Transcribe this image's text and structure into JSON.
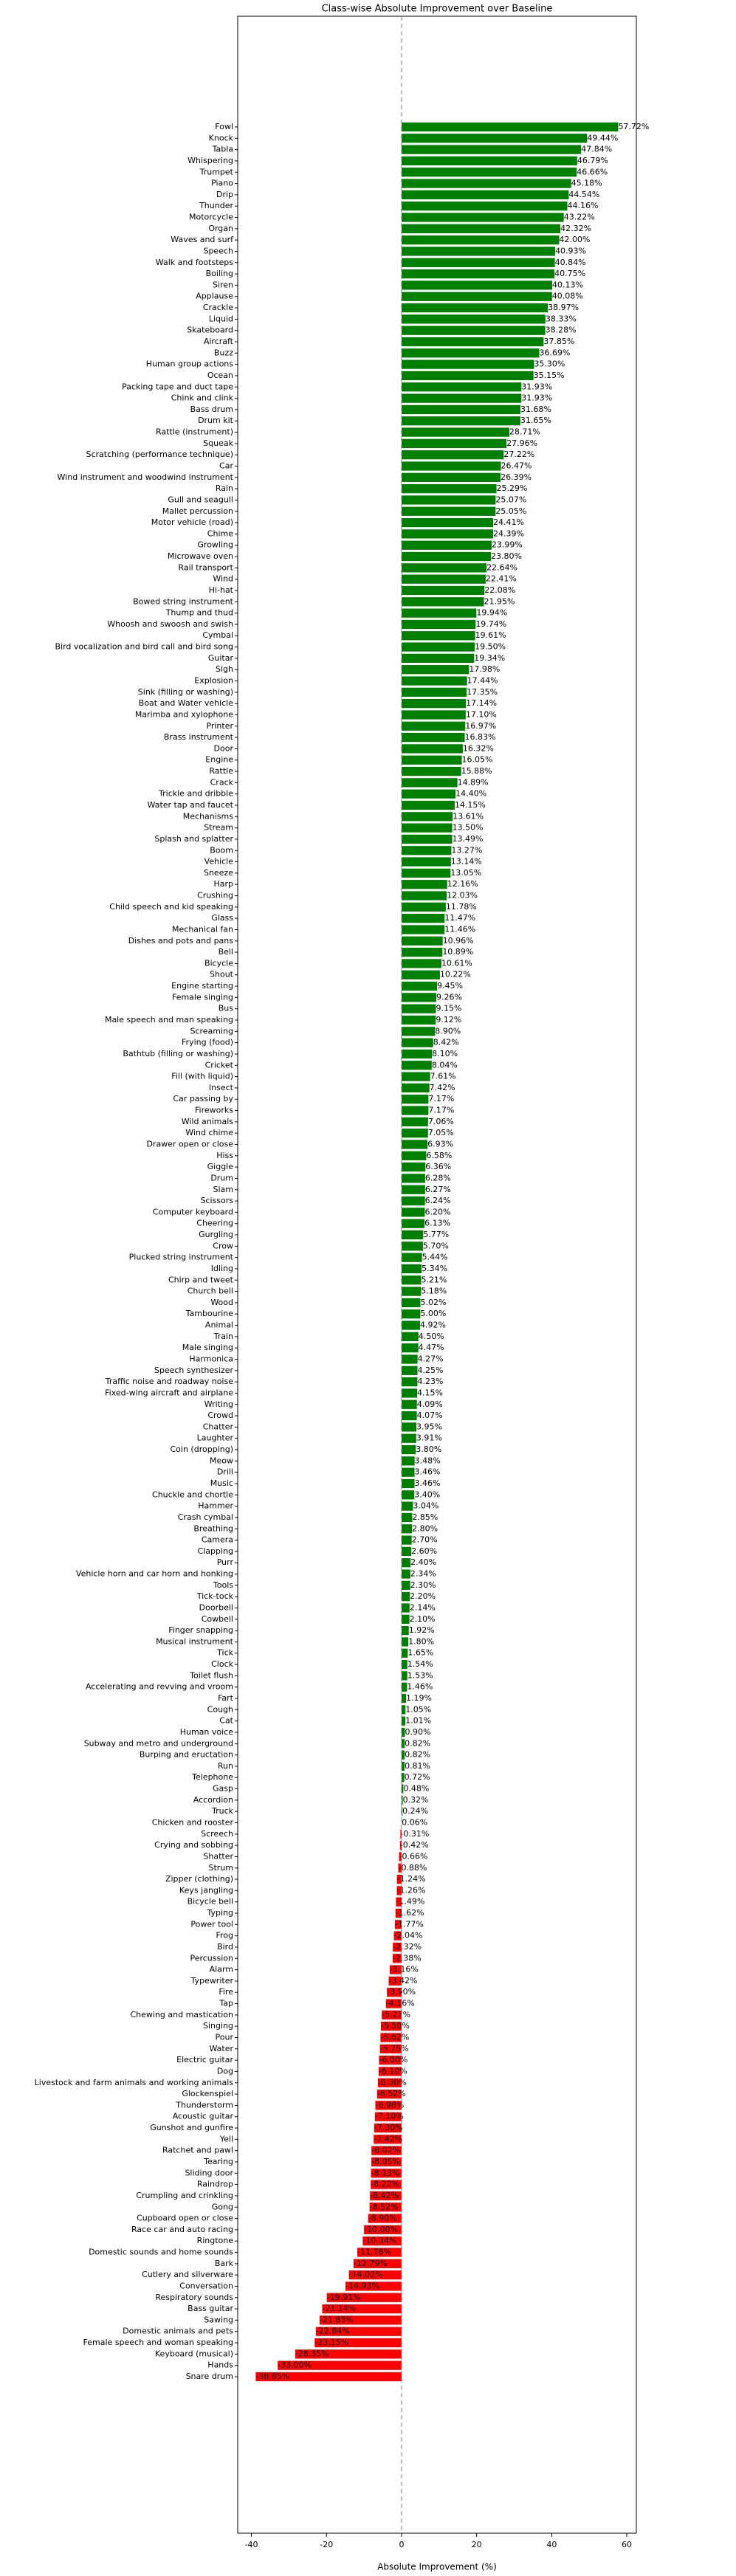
{
  "chart_data": {
    "type": "barh",
    "title": "Class-wise Absolute Improvement over Baseline",
    "xlabel": "Absolute Improvement (%)",
    "categories": [
      "Fowl",
      "Knock",
      "Tabla",
      "Whispering",
      "Trumpet",
      "Piano",
      "Drip",
      "Thunder",
      "Motorcycle",
      "Organ",
      "Waves and surf",
      "Speech",
      "Walk and footsteps",
      "Boiling",
      "Siren",
      "Applause",
      "Crackle",
      "Liquid",
      "Skateboard",
      "Aircraft",
      "Buzz",
      "Human group actions",
      "Ocean",
      "Packing tape and duct tape",
      "Chink and clink",
      "Bass drum",
      "Drum kit",
      "Rattle (instrument)",
      "Squeak",
      "Scratching (performance technique)",
      "Car",
      "Wind instrument and woodwind instrument",
      "Rain",
      "Gull and seagull",
      "Mallet percussion",
      "Motor vehicle (road)",
      "Chime",
      "Growling",
      "Microwave oven",
      "Rail transport",
      "Wind",
      "Hi-hat",
      "Bowed string instrument",
      "Thump and thud",
      "Whoosh and swoosh and swish",
      "Cymbal",
      "Bird vocalization and bird call and bird song",
      "Guitar",
      "Sigh",
      "Explosion",
      "Sink (filling or washing)",
      "Boat and Water vehicle",
      "Marimba and xylophone",
      "Printer",
      "Brass instrument",
      "Door",
      "Engine",
      "Rattle",
      "Crack",
      "Trickle and dribble",
      "Water tap and faucet",
      "Mechanisms",
      "Stream",
      "Splash and splatter",
      "Boom",
      "Vehicle",
      "Sneeze",
      "Harp",
      "Crushing",
      "Child speech and kid speaking",
      "Glass",
      "Mechanical fan",
      "Dishes and pots and pans",
      "Bell",
      "Bicycle",
      "Shout",
      "Engine starting",
      "Female singing",
      "Bus",
      "Male speech and man speaking",
      "Screaming",
      "Frying (food)",
      "Bathtub (filling or washing)",
      "Cricket",
      "Fill (with liquid)",
      "Insect",
      "Car passing by",
      "Fireworks",
      "Wild animals",
      "Wind chime",
      "Drawer open or close",
      "Hiss",
      "Giggle",
      "Drum",
      "Slam",
      "Scissors",
      "Computer keyboard",
      "Cheering",
      "Gurgling",
      "Crow",
      "Plucked string instrument",
      "Idling",
      "Chirp and tweet",
      "Church bell",
      "Wood",
      "Tambourine",
      "Animal",
      "Train",
      "Male singing",
      "Harmonica",
      "Speech synthesizer",
      "Traffic noise and roadway noise",
      "Fixed-wing aircraft and airplane",
      "Writing",
      "Crowd",
      "Chatter",
      "Laughter",
      "Coin (dropping)",
      "Meow",
      "Drill",
      "Music",
      "Chuckle and chortle",
      "Hammer",
      "Crash cymbal",
      "Breathing",
      "Camera",
      "Clapping",
      "Purr",
      "Vehicle horn and car horn and honking",
      "Tools",
      "Tick-tock",
      "Doorbell",
      "Cowbell",
      "Finger snapping",
      "Musical instrument",
      "Tick",
      "Clock",
      "Toilet flush",
      "Accelerating and revving and vroom",
      "Fart",
      "Cough",
      "Cat",
      "Human voice",
      "Subway and metro and underground",
      "Burping and eructation",
      "Run",
      "Telephone",
      "Gasp",
      "Accordion",
      "Truck",
      "Chicken and rooster",
      "Screech",
      "Crying and sobbing",
      "Shatter",
      "Strum",
      "Zipper (clothing)",
      "Keys jangling",
      "Bicycle bell",
      "Typing",
      "Power tool",
      "Frog",
      "Bird",
      "Percussion",
      "Alarm",
      "Typewriter",
      "Fire",
      "Tap",
      "Chewing and mastication",
      "Singing",
      "Pour",
      "Water",
      "Electric guitar",
      "Dog",
      "Livestock and farm animals and working animals",
      "Glockenspiel",
      "Thunderstorm",
      "Acoustic guitar",
      "Gunshot and gunfire",
      "Yell",
      "Ratchet and pawl",
      "Tearing",
      "Sliding door",
      "Raindrop",
      "Crumpling and crinkling",
      "Gong",
      "Cupboard open or close",
      "Race car and auto racing",
      "Ringtone",
      "Domestic sounds and home sounds",
      "Bark",
      "Cutlery and silverware",
      "Conversation",
      "Respiratory sounds",
      "Bass guitar",
      "Sawing",
      "Domestic animals and pets",
      "Female speech and woman speaking",
      "Keyboard (musical)",
      "Hands",
      "Snare drum"
    ],
    "values": [
      57.72,
      49.44,
      47.84,
      46.79,
      46.66,
      45.18,
      44.54,
      44.16,
      43.22,
      42.32,
      42.0,
      40.93,
      40.84,
      40.75,
      40.13,
      40.08,
      38.97,
      38.33,
      38.28,
      37.85,
      36.69,
      35.3,
      35.15,
      31.93,
      31.93,
      31.68,
      31.65,
      28.71,
      27.96,
      27.22,
      26.47,
      26.39,
      25.29,
      25.07,
      25.05,
      24.41,
      24.39,
      23.99,
      23.8,
      22.64,
      22.41,
      22.08,
      21.95,
      19.94,
      19.74,
      19.61,
      19.5,
      19.34,
      17.98,
      17.44,
      17.35,
      17.14,
      17.1,
      16.97,
      16.83,
      16.32,
      16.05,
      15.88,
      14.89,
      14.4,
      14.15,
      13.61,
      13.5,
      13.49,
      13.27,
      13.14,
      13.05,
      12.16,
      12.03,
      11.78,
      11.47,
      11.46,
      10.96,
      10.89,
      10.61,
      10.22,
      9.45,
      9.26,
      9.15,
      9.12,
      8.9,
      8.42,
      8.1,
      8.04,
      7.61,
      7.42,
      7.17,
      7.17,
      7.06,
      7.05,
      6.93,
      6.58,
      6.36,
      6.28,
      6.27,
      6.24,
      6.2,
      6.13,
      5.77,
      5.7,
      5.44,
      5.34,
      5.21,
      5.18,
      5.02,
      5.0,
      4.92,
      4.5,
      4.47,
      4.27,
      4.25,
      4.23,
      4.15,
      4.09,
      4.07,
      3.95,
      3.91,
      3.8,
      3.48,
      3.46,
      3.46,
      3.4,
      3.04,
      2.85,
      2.8,
      2.7,
      2.6,
      2.4,
      2.34,
      2.3,
      2.2,
      2.14,
      2.1,
      1.92,
      1.8,
      1.65,
      1.54,
      1.53,
      1.46,
      1.19,
      1.05,
      1.01,
      0.9,
      0.82,
      0.82,
      0.81,
      0.72,
      0.48,
      0.32,
      0.24,
      0.06,
      -0.31,
      -0.42,
      -0.66,
      -0.88,
      -1.24,
      -1.26,
      -1.49,
      -1.62,
      -1.77,
      -2.04,
      -2.32,
      -2.38,
      -3.16,
      -3.42,
      -3.9,
      -4.16,
      -5.27,
      -5.5,
      -5.62,
      -5.75,
      -6.0,
      -6.1,
      -6.3,
      -6.52,
      -6.98,
      -7.1,
      -7.3,
      -7.42,
      -8.02,
      -8.05,
      -8.13,
      -8.22,
      -8.42,
      -8.52,
      -8.9,
      -10.0,
      -10.34,
      -11.78,
      -12.79,
      -14.02,
      -14.93,
      -19.91,
      -21.14,
      -21.83,
      -22.84,
      -23.15,
      -28.35,
      -33.0,
      -38.85
    ],
    "value_labels": [
      "57.72%",
      "49.44%",
      "47.84%",
      "46.79%",
      "46.66%",
      "45.18%",
      "44.54%",
      "44.16%",
      "43.22%",
      "42.32%",
      "42.00%",
      "40.93%",
      "40.84%",
      "40.75%",
      "40.13%",
      "40.08%",
      "38.97%",
      "38.33%",
      "38.28%",
      "37.85%",
      "36.69%",
      "35.30%",
      "35.15%",
      "31.93%",
      "31.93%",
      "31.68%",
      "31.65%",
      "28.71%",
      "27.96%",
      "27.22%",
      "26.47%",
      "26.39%",
      "25.29%",
      "25.07%",
      "25.05%",
      "24.41%",
      "24.39%",
      "23.99%",
      "23.80%",
      "22.64%",
      "22.41%",
      "22.08%",
      "21.95%",
      "19.94%",
      "19.74%",
      "19.61%",
      "19.50%",
      "19.34%",
      "17.98%",
      "17.44%",
      "17.35%",
      "17.14%",
      "17.10%",
      "16.97%",
      "16.83%",
      "16.32%",
      "16.05%",
      "15.88%",
      "14.89%",
      "14.40%",
      "14.15%",
      "13.61%",
      "13.50%",
      "13.49%",
      "13.27%",
      "13.14%",
      "13.05%",
      "12.16%",
      "12.03%",
      "11.78%",
      "11.47%",
      "11.46%",
      "10.96%",
      "10.89%",
      "10.61%",
      "10.22%",
      "9.45%",
      "9.26%",
      "9.15%",
      "9.12%",
      "8.90%",
      "8.42%",
      "8.10%",
      "8.04%",
      "7.61%",
      "7.42%",
      "7.17%",
      "7.17%",
      "7.06%",
      "7.05%",
      "6.93%",
      "6.58%",
      "6.36%",
      "6.28%",
      "6.27%",
      "6.24%",
      "6.20%",
      "6.13%",
      "5.77%",
      "5.70%",
      "5.44%",
      "5.34%",
      "5.21%",
      "5.18%",
      "5.02%",
      "5.00%",
      "4.92%",
      "4.50%",
      "4.47%",
      "4.27%",
      "4.25%",
      "4.23%",
      "4.15%",
      "4.09%",
      "4.07%",
      "3.95%",
      "3.91%",
      "3.80%",
      "3.48%",
      "3.46%",
      "3.46%",
      "3.40%",
      "3.04%",
      "2.85%",
      "2.80%",
      "2.70%",
      "2.60%",
      "2.40%",
      "2.34%",
      "2.30%",
      "2.20%",
      "2.14%",
      "2.10%",
      "1.92%",
      "1.80%",
      "1.65%",
      "1.54%",
      "1.53%",
      "1.46%",
      "1.19%",
      "1.05%",
      "1.01%",
      "0.90%",
      "0.82%",
      "0.82%",
      "0.81%",
      "0.72%",
      "0.48%",
      "0.32%",
      "0.24%",
      "0.06%",
      "-0.31%",
      "-0.42%",
      "-0.66%",
      "-0.88%",
      "-1.24%",
      "-1.26%",
      "-1.49%",
      "-1.62%",
      "-1.77%",
      "-2.04%",
      "-2.32%",
      "-2.38%",
      "-3.16%",
      "-3.42%",
      "-3.90%",
      "-4.16%",
      "-5.27%",
      "-5.50%",
      "-5.62%",
      "-5.75%",
      "-6.00%",
      "-6.10%",
      "-6.30%",
      "-6.52%",
      "-6.98%",
      "-7.10%",
      "-7.30%",
      "-7.42%",
      "-8.02%",
      "-8.05%",
      "-8.13%",
      "-8.22%",
      "-8.42%",
      "-8.52%",
      "-8.90%",
      "-10.00%",
      "-10.34%",
      "-11.78%",
      "-12.79%",
      "-14.02%",
      "-14.93%",
      "-19.91%",
      "-21.14%",
      "-21.83%",
      "-22.84%",
      "-23.15%",
      "-28.35%",
      "-33.00%",
      "-38.85%"
    ],
    "colors": {
      "positive": "#008000",
      "negative": "#ff0000"
    },
    "xlim": [
      -43.65,
      62.55
    ],
    "xticks": [
      -40,
      -20,
      0,
      20,
      40,
      60
    ],
    "zero_line": true
  }
}
